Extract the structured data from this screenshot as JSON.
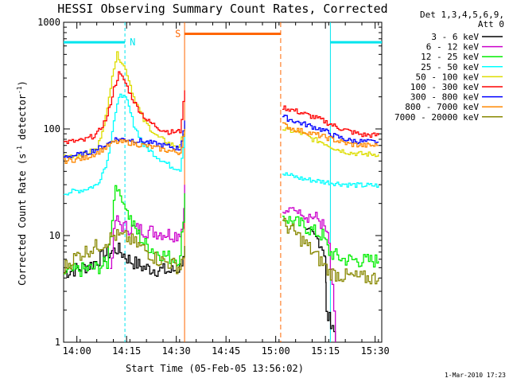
{
  "chart_data": {
    "type": "line",
    "title": "HESSI Observing Summary Count Rates, Corrected",
    "xlabel": "Start Time (05-Feb-05 13:56:02)",
    "ylabel_main": "Corrected Count Rate (s",
    "ylabel_exp1": "-1",
    "ylabel_mid": " detector",
    "ylabel_exp2": "-1",
    "ylabel_end": ")",
    "date_stamp": "1-Mar-2010 17:23",
    "yscale": "log",
    "ylim": [
      1,
      1000
    ],
    "xlim_minutes": [
      836,
      932
    ],
    "x_ticks": [
      {
        "minute": 840,
        "label": "14:00"
      },
      {
        "minute": 855,
        "label": "14:15"
      },
      {
        "minute": 870,
        "label": "14:30"
      },
      {
        "minute": 885,
        "label": "14:45"
      },
      {
        "minute": 900,
        "label": "15:00"
      },
      {
        "minute": 915,
        "label": "15:15"
      },
      {
        "minute": 930,
        "label": "15:30"
      }
    ],
    "y_ticks": [
      {
        "value": 1,
        "label": "1"
      },
      {
        "value": 10,
        "label": "10"
      },
      {
        "value": 100,
        "label": "100"
      },
      {
        "value": 1000,
        "label": "1000"
      }
    ],
    "legend_header": [
      "Det 1,3,4,5,6,9,",
      "Att 0"
    ],
    "annotations": {
      "night_label": "N",
      "saa_label": "S"
    },
    "night_intervals": [
      [
        836,
        854.5
      ],
      [
        916.5,
        932
      ]
    ],
    "saa_interval": [
      872.5,
      901.5
    ],
    "series": [
      {
        "name": "3 - 6 keV",
        "color": "#000000",
        "segments": [
          [
            [
              836,
              4.5
            ],
            [
              844,
              5.3
            ],
            [
              848,
              6.5
            ],
            [
              852,
              7.5
            ],
            [
              856,
              5.8
            ],
            [
              860,
              5.0
            ],
            [
              864,
              4.8
            ],
            [
              868,
              4.6
            ],
            [
              871,
              5.0
            ],
            [
              872.5,
              8.0
            ]
          ],
          [
            [
              909,
              10.5
            ],
            [
              913,
              9.0
            ],
            [
              915,
              6.5
            ],
            [
              915.2,
              1.8
            ],
            [
              917,
              1.5
            ],
            [
              918,
              1.0
            ]
          ]
        ]
      },
      {
        "name": "6 - 12 keV",
        "color": "#cc00cc",
        "segments": [
          [
            [
              850,
              5.0
            ],
            [
              851.5,
              14.0
            ],
            [
              854,
              12.0
            ],
            [
              858,
              11.5
            ],
            [
              862,
              11.0
            ],
            [
              866,
              10.5
            ],
            [
              870,
              10.2
            ],
            [
              872,
              12.0
            ],
            [
              872.5,
              30.0
            ]
          ],
          [
            [
              902,
              16.0
            ],
            [
              905,
              18.0
            ],
            [
              908,
              16.0
            ],
            [
              911,
              15.0
            ],
            [
              913,
              14.0
            ],
            [
              915,
              11.0
            ],
            [
              916,
              8.0
            ],
            [
              917,
              3.0
            ],
            [
              918,
              1.0
            ]
          ]
        ]
      },
      {
        "name": "12 - 25 keV",
        "color": "#00ee00",
        "segments": [
          [
            [
              836,
              4.5
            ],
            [
              846,
              5.0
            ],
            [
              849,
              5.5
            ],
            [
              851.5,
              30.0
            ],
            [
              854,
              20.0
            ],
            [
              857,
              12.0
            ],
            [
              860,
              8.5
            ],
            [
              864,
              7.0
            ],
            [
              868,
              6.2
            ],
            [
              871,
              6.0
            ],
            [
              872.5,
              25.0
            ]
          ],
          [
            [
              902,
              15.0
            ],
            [
              905,
              13.5
            ],
            [
              908,
              12.5
            ],
            [
              911,
              11.0
            ],
            [
              914,
              10.0
            ],
            [
              916,
              7.0
            ],
            [
              920,
              6.0
            ],
            [
              926,
              5.8
            ],
            [
              931,
              5.8
            ]
          ]
        ]
      },
      {
        "name": "25 - 50 keV",
        "color": "#00ffff",
        "segments": [
          [
            [
              836,
              25
            ],
            [
              842,
              27
            ],
            [
              846,
              30
            ],
            [
              849,
              50
            ],
            [
              851,
              120
            ],
            [
              853,
              220
            ],
            [
              855,
              180
            ],
            [
              857,
              110
            ],
            [
              860,
              70
            ],
            [
              864,
              55
            ],
            [
              868,
              45
            ],
            [
              871,
              42
            ],
            [
              872.5,
              90
            ]
          ],
          [
            [
              902,
              38
            ],
            [
              905,
              36
            ],
            [
              908,
              34
            ],
            [
              911,
              33
            ],
            [
              914,
              32
            ],
            [
              918,
              31
            ],
            [
              922,
              30
            ],
            [
              926,
              29.5
            ],
            [
              931,
              29.5
            ]
          ]
        ]
      },
      {
        "name": "50 - 100 keV",
        "color": "#dddd00",
        "segments": [
          [
            [
              836,
              55
            ],
            [
              842,
              58
            ],
            [
              846,
              65
            ],
            [
              849,
              150
            ],
            [
              850.5,
              330
            ],
            [
              852,
              500
            ],
            [
              853.5,
              420
            ],
            [
              855,
              330
            ],
            [
              857,
              200
            ],
            [
              860,
              120
            ],
            [
              864,
              85
            ],
            [
              868,
              72
            ],
            [
              871,
              68
            ],
            [
              872.5,
              110
            ]
          ],
          [
            [
              902,
              100
            ],
            [
              905,
              95
            ],
            [
              908,
              90
            ],
            [
              911,
              80
            ],
            [
              914,
              75
            ],
            [
              918,
              65
            ],
            [
              922,
              60
            ],
            [
              926,
              58
            ],
            [
              931,
              58
            ]
          ]
        ]
      },
      {
        "name": "100 - 300 keV",
        "color": "#ff0000",
        "segments": [
          [
            [
              836,
              75
            ],
            [
              842,
              78
            ],
            [
              846,
              90
            ],
            [
              849,
              130
            ],
            [
              851,
              240
            ],
            [
              852.5,
              330
            ],
            [
              854,
              290
            ],
            [
              856,
              210
            ],
            [
              858,
              160
            ],
            [
              861,
              120
            ],
            [
              865,
              100
            ],
            [
              868,
              93
            ],
            [
              871,
              95
            ],
            [
              872.5,
              230
            ]
          ],
          [
            [
              902,
              160
            ],
            [
              905,
              150
            ],
            [
              908,
              140
            ],
            [
              911,
              130
            ],
            [
              914,
              120
            ],
            [
              918,
              105
            ],
            [
              922,
              95
            ],
            [
              926,
              88
            ],
            [
              931,
              87
            ]
          ]
        ]
      },
      {
        "name": "300 - 800 keV",
        "color": "#0000ff",
        "segments": [
          [
            [
              836,
              55
            ],
            [
              842,
              58
            ],
            [
              846,
              65
            ],
            [
              849,
              72
            ],
            [
              851,
              80
            ],
            [
              855,
              80
            ],
            [
              860,
              76
            ],
            [
              864,
              72
            ],
            [
              868,
              68
            ],
            [
              871,
              65
            ],
            [
              872.5,
              120
            ]
          ],
          [
            [
              902,
              130
            ],
            [
              905,
              120
            ],
            [
              908,
              112
            ],
            [
              911,
              105
            ],
            [
              914,
              98
            ],
            [
              918,
              85
            ],
            [
              922,
              78
            ],
            [
              926,
              76
            ],
            [
              931,
              75
            ]
          ]
        ]
      },
      {
        "name": "800 - 7000 keV",
        "color": "#ff8800",
        "segments": [
          [
            [
              836,
              50
            ],
            [
              842,
              53
            ],
            [
              846,
              60
            ],
            [
              849,
              68
            ],
            [
              851,
              75
            ],
            [
              855,
              75
            ],
            [
              860,
              70
            ],
            [
              864,
              66
            ],
            [
              868,
              62
            ],
            [
              871,
              60
            ],
            [
              872.5,
              100
            ]
          ],
          [
            [
              902,
              110
            ],
            [
              905,
              100
            ],
            [
              908,
              95
            ],
            [
              911,
              90
            ],
            [
              914,
              85
            ],
            [
              918,
              78
            ],
            [
              922,
              72
            ],
            [
              926,
              70
            ],
            [
              931,
              70
            ]
          ]
        ]
      },
      {
        "name": "7000 - 20000 keV",
        "color": "#888800",
        "segments": [
          [
            [
              836,
              5.0
            ],
            [
              840,
              6.5
            ],
            [
              844,
              7.5
            ],
            [
              848,
              8.5
            ],
            [
              851,
              10.0
            ],
            [
              855,
              9.5
            ],
            [
              860,
              7.5
            ],
            [
              864,
              6.0
            ],
            [
              868,
              5.5
            ],
            [
              871,
              5.0
            ],
            [
              872.5,
              8.0
            ]
          ],
          [
            [
              902,
              13.0
            ],
            [
              905,
              11.0
            ],
            [
              908,
              9.0
            ],
            [
              911,
              7.0
            ],
            [
              914,
              5.5
            ],
            [
              916,
              4.5
            ],
            [
              920,
              4.2
            ],
            [
              926,
              4.0
            ],
            [
              931,
              4.0
            ]
          ]
        ]
      }
    ]
  }
}
